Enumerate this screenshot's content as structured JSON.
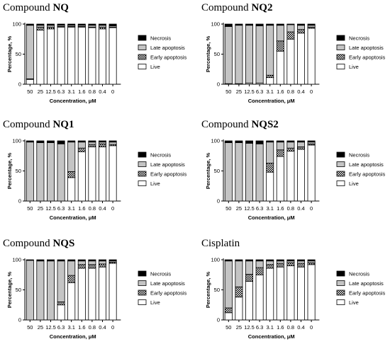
{
  "colors": {
    "live": "#ffffff",
    "early_apoptosis": "checkered-pattern",
    "late_apoptosis": "#c4c4c4",
    "necrosis": "#000000",
    "bar_outline": "#000000"
  },
  "chart_data": [
    {
      "type": "bar",
      "stacked": true,
      "title_prefix": "Compound",
      "title_name": "NQ",
      "xlabel": "Concentration, μM",
      "ylabel": "Percentage, %",
      "ylim": [
        0,
        100
      ],
      "yticks": [
        0,
        50,
        100
      ],
      "legend_position": "right",
      "categories": [
        "50",
        "25",
        "12.5",
        "6.3",
        "3.1",
        "1.6",
        "0.8",
        "0.4",
        "0"
      ],
      "series": [
        {
          "name": "Live",
          "values": [
            8,
            90,
            92,
            95,
            95,
            95,
            94,
            92,
            94
          ]
        },
        {
          "name": "Early apoptosis",
          "values": [
            1,
            5,
            3,
            1,
            1,
            1,
            1,
            3,
            1
          ]
        },
        {
          "name": "Late apoptosis",
          "values": [
            89,
            3,
            3,
            2,
            2,
            2,
            3,
            3,
            2
          ]
        },
        {
          "name": "Necrosis",
          "values": [
            2,
            2,
            2,
            2,
            2,
            2,
            2,
            2,
            3
          ]
        }
      ]
    },
    {
      "type": "bar",
      "stacked": true,
      "title_prefix": "Compound",
      "title_name": "NQ2",
      "xlabel": "Concentration, μM",
      "ylabel": "Percentage, %",
      "ylim": [
        0,
        100
      ],
      "yticks": [
        0,
        50,
        100
      ],
      "legend_position": "right",
      "categories": [
        "50",
        "25",
        "12.5",
        "6.3",
        "3.1",
        "1.6",
        "0.8",
        "0.4",
        "0"
      ],
      "series": [
        {
          "name": "Live",
          "values": [
            1,
            1,
            2,
            2,
            11,
            55,
            75,
            85,
            93
          ]
        },
        {
          "name": "Early apoptosis",
          "values": [
            0,
            0,
            0,
            0,
            4,
            17,
            12,
            6,
            2
          ]
        },
        {
          "name": "Late apoptosis",
          "values": [
            95,
            97,
            96,
            95,
            83,
            26,
            12,
            7,
            3
          ]
        },
        {
          "name": "Necrosis",
          "values": [
            4,
            2,
            2,
            3,
            2,
            2,
            1,
            2,
            2
          ]
        }
      ]
    },
    {
      "type": "bar",
      "stacked": true,
      "title_prefix": "Compound",
      "title_name": "NQ1",
      "xlabel": "Concentration, μM",
      "ylabel": "Percentage, %",
      "ylim": [
        0,
        100
      ],
      "yticks": [
        0,
        50,
        100
      ],
      "legend_position": "right",
      "categories": [
        "50",
        "25",
        "12.5",
        "6.3",
        "3.1",
        "1.6",
        "0.8",
        "0.4",
        "0"
      ],
      "series": [
        {
          "name": "Live",
          "values": [
            0,
            0,
            0,
            0,
            39,
            82,
            90,
            90,
            92
          ]
        },
        {
          "name": "Early apoptosis",
          "values": [
            0,
            0,
            0,
            0,
            10,
            6,
            4,
            5,
            2
          ]
        },
        {
          "name": "Late apoptosis",
          "values": [
            98,
            97,
            97,
            95,
            49,
            10,
            4,
            3,
            4
          ]
        },
        {
          "name": "Necrosis",
          "values": [
            2,
            3,
            3,
            5,
            2,
            2,
            2,
            2,
            2
          ]
        }
      ]
    },
    {
      "type": "bar",
      "stacked": true,
      "title_prefix": "Compound",
      "title_name": "NQS2",
      "xlabel": "Concentration, μM",
      "ylabel": "Percentage, %",
      "ylim": [
        0,
        100
      ],
      "yticks": [
        0,
        50,
        100
      ],
      "legend_position": "right",
      "categories": [
        "50",
        "25",
        "12.5",
        "6.3",
        "3.1",
        "1.6",
        "0.8",
        "0.4",
        "0"
      ],
      "series": [
        {
          "name": "Live",
          "values": [
            0,
            0,
            0,
            0,
            48,
            74,
            83,
            86,
            93
          ]
        },
        {
          "name": "Early apoptosis",
          "values": [
            0,
            0,
            0,
            0,
            15,
            11,
            5,
            4,
            2
          ]
        },
        {
          "name": "Late apoptosis",
          "values": [
            97,
            97,
            96,
            95,
            35,
            13,
            10,
            8,
            3
          ]
        },
        {
          "name": "Necrosis",
          "values": [
            3,
            3,
            4,
            5,
            2,
            2,
            2,
            2,
            2
          ]
        }
      ]
    },
    {
      "type": "bar",
      "stacked": true,
      "title_prefix": "Compound",
      "title_name": "NQS",
      "xlabel": "Concentration, μM",
      "ylabel": "Percentage, %",
      "ylim": [
        0,
        100
      ],
      "yticks": [
        0,
        50,
        100
      ],
      "legend_position": "right",
      "categories": [
        "50",
        "25",
        "12.5",
        "6.3",
        "3.1",
        "1.6",
        "0.8",
        "0.4",
        "0"
      ],
      "series": [
        {
          "name": "Live",
          "values": [
            0,
            0,
            0,
            25,
            62,
            86,
            86,
            88,
            94
          ]
        },
        {
          "name": "Early apoptosis",
          "values": [
            0,
            0,
            0,
            5,
            12,
            6,
            6,
            5,
            2
          ]
        },
        {
          "name": "Late apoptosis",
          "values": [
            99,
            98,
            98,
            68,
            24,
            6,
            6,
            5,
            2
          ]
        },
        {
          "name": "Necrosis",
          "values": [
            1,
            2,
            2,
            2,
            2,
            2,
            2,
            2,
            2
          ]
        }
      ]
    },
    {
      "type": "bar",
      "stacked": true,
      "title_prefix": "",
      "title_name": "Cisplatin",
      "xlabel": "Concentration, μM",
      "ylabel": "Percentage, %",
      "ylim": [
        0,
        100
      ],
      "yticks": [
        0,
        50,
        100
      ],
      "legend_position": "right",
      "categories": [
        "50",
        "25",
        "12.5",
        "6.3",
        "3.1",
        "1.6",
        "0.8",
        "0.4",
        "0"
      ],
      "series": [
        {
          "name": "Live",
          "values": [
            12,
            38,
            64,
            75,
            86,
            88,
            90,
            88,
            92
          ]
        },
        {
          "name": "Early apoptosis",
          "values": [
            8,
            17,
            12,
            12,
            6,
            6,
            5,
            6,
            3
          ]
        },
        {
          "name": "Late apoptosis",
          "values": [
            78,
            43,
            22,
            11,
            6,
            4,
            3,
            4,
            3
          ]
        },
        {
          "name": "Necrosis",
          "values": [
            2,
            2,
            2,
            2,
            2,
            2,
            2,
            2,
            2
          ]
        }
      ]
    }
  ]
}
